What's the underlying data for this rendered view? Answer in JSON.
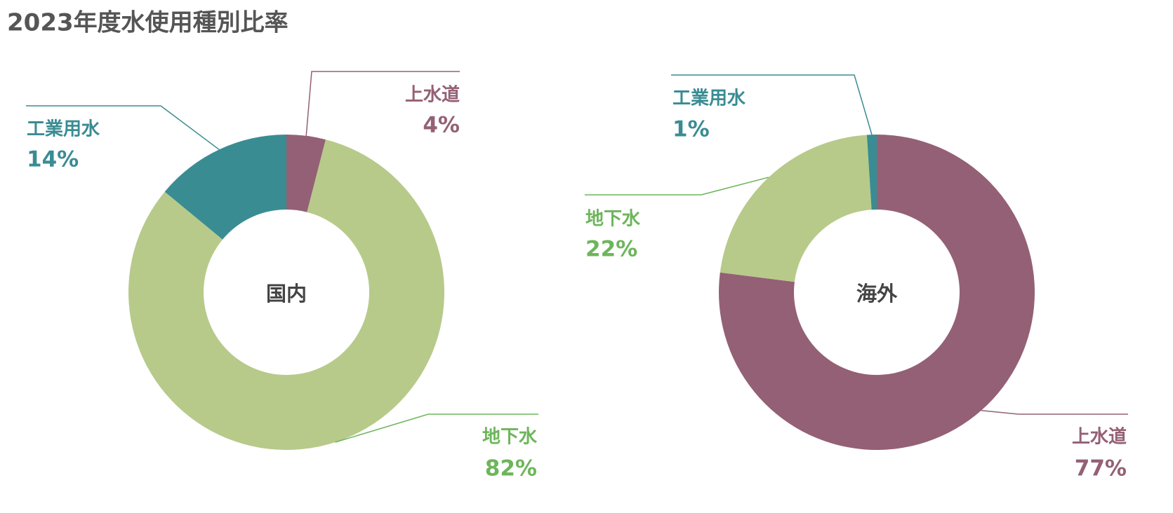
{
  "title": "2023年度水使用種別比率",
  "chart_data": [
    {
      "type": "pie",
      "center_label": "国内",
      "categories": [
        "上水道",
        "地下水",
        "工業用水"
      ],
      "values": [
        4,
        82,
        14
      ],
      "value_labels": [
        "4%",
        "82%",
        "14%"
      ],
      "colors": [
        "#946075",
        "#b7ca8a",
        "#3a8c93"
      ],
      "label_colors": [
        "#946075",
        "#6db55b",
        "#3a8c93"
      ]
    },
    {
      "type": "pie",
      "center_label": "海外",
      "categories": [
        "上水道",
        "地下水",
        "工業用水"
      ],
      "values": [
        77,
        22,
        1
      ],
      "value_labels": [
        "77%",
        "22%",
        "1%"
      ],
      "colors": [
        "#946075",
        "#b7ca8a",
        "#3a8c93"
      ],
      "label_colors": [
        "#946075",
        "#6db55b",
        "#3a8c93"
      ]
    }
  ]
}
